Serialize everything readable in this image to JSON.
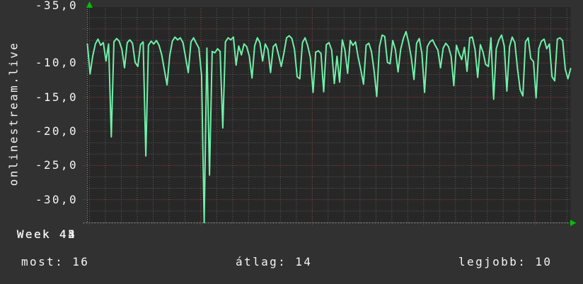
{
  "panel": {
    "host_label": "onlinestream.live"
  },
  "chart_data": {
    "type": "line",
    "ylabel": "onlinestream.live",
    "y_tick_labels": [
      "-10,0",
      "-15,0",
      "-20,0",
      "-25,0",
      "-30,0",
      "-35,0"
    ],
    "y_tick_values": [
      -10,
      -15,
      -20,
      -25,
      -30,
      -35
    ],
    "x_tick_labels": [
      "Week 42",
      "Week 43",
      "Week 44",
      "Week 45"
    ],
    "ylim": [
      -38.4,
      -6.8
    ],
    "grid": {
      "style": "dotted",
      "minor_y_step": 1.6667,
      "days_total": 30.37,
      "days_per_week": 7,
      "first_line_day_offset": 0.133
    },
    "legend_position": "none",
    "series": [
      {
        "name": "onlinestream.live",
        "values": [
          -12.2,
          -16.6,
          -14.0,
          -12.2,
          -11.5,
          -12.4,
          -12.0,
          -14.7,
          -12.2,
          -25.8,
          -11.9,
          -11.4,
          -11.8,
          -13.0,
          -15.7,
          -12.0,
          -11.6,
          -12.1,
          -14.9,
          -15.5,
          -12.3,
          -11.9,
          -28.6,
          -12.4,
          -11.8,
          -12.2,
          -11.7,
          -12.4,
          -13.8,
          -16.0,
          -18.2,
          -14.0,
          -11.8,
          -11.2,
          -11.6,
          -11.3,
          -12.0,
          -14.2,
          -16.4,
          -11.9,
          -11.3,
          -12.1,
          -12.8,
          -16.8,
          -38.5,
          -12.8,
          -31.4,
          -13.3,
          -13.5,
          -12.9,
          -13.3,
          -24.5,
          -11.9,
          -11.3,
          -11.6,
          -11.2,
          -15.3,
          -12.5,
          -13.8,
          -12.2,
          -12.6,
          -14.0,
          -17.2,
          -12.5,
          -11.3,
          -12.0,
          -14.7,
          -12.2,
          -13.0,
          -16.4,
          -12.6,
          -12.2,
          -13.8,
          -15.5,
          -13.6,
          -11.3,
          -11.0,
          -11.4,
          -13.0,
          -17.0,
          -17.3,
          -12.0,
          -11.3,
          -12.5,
          -14.2,
          -19.3,
          -13.4,
          -13.2,
          -13.6,
          -19.2,
          -12.3,
          -12.0,
          -13.1,
          -18.0,
          -14.0,
          -17.8,
          -11.6,
          -13.1,
          -16.5,
          -11.7,
          -12.4,
          -11.9,
          -14.2,
          -16.0,
          -18.1,
          -12.4,
          -12.1,
          -13.3,
          -16.2,
          -19.9,
          -12.6,
          -10.9,
          -11.1,
          -14.9,
          -15.1,
          -11.7,
          -13.0,
          -16.3,
          -13.0,
          -11.4,
          -10.4,
          -12.0,
          -14.2,
          -17.4,
          -12.1,
          -11.4,
          -13.6,
          -19.3,
          -12.6,
          -11.9,
          -11.6,
          -12.4,
          -13.1,
          -15.7,
          -12.8,
          -12.1,
          -12.6,
          -14.0,
          -18.3,
          -12.4,
          -13.6,
          -14.5,
          -12.7,
          -16.2,
          -11.3,
          -11.2,
          -13.0,
          -17.1,
          -12.3,
          -13.4,
          -15.2,
          -15.5,
          -11.3,
          -20.3,
          -12.9,
          -11.6,
          -10.9,
          -12.5,
          -19.1,
          -12.6,
          -11.2,
          -12.0,
          -15.8,
          -18.9,
          -19.8,
          -11.9,
          -11.3,
          -14.3,
          -14.8,
          -20.1,
          -12.9,
          -11.8,
          -11.5,
          -12.9,
          -12.2,
          -17.0,
          -17.6,
          -11.5,
          -11.3,
          -11.7,
          -15.9,
          -17.3,
          -15.8
        ]
      }
    ]
  },
  "stats": [
    {
      "label": "most:",
      "value": "16"
    },
    {
      "label": "átlag:",
      "value": "14"
    },
    {
      "label": "legjobb:",
      "value": "10"
    }
  ],
  "colors": {
    "background": "#313131",
    "plot_background": "#272727",
    "grid_minor": "#5c5c5c",
    "grid_major": "#a04545",
    "baseline": "#8d8d8d",
    "line": "#6ff0a8",
    "arrow": "#00c000",
    "text": "#f5f5f5"
  }
}
